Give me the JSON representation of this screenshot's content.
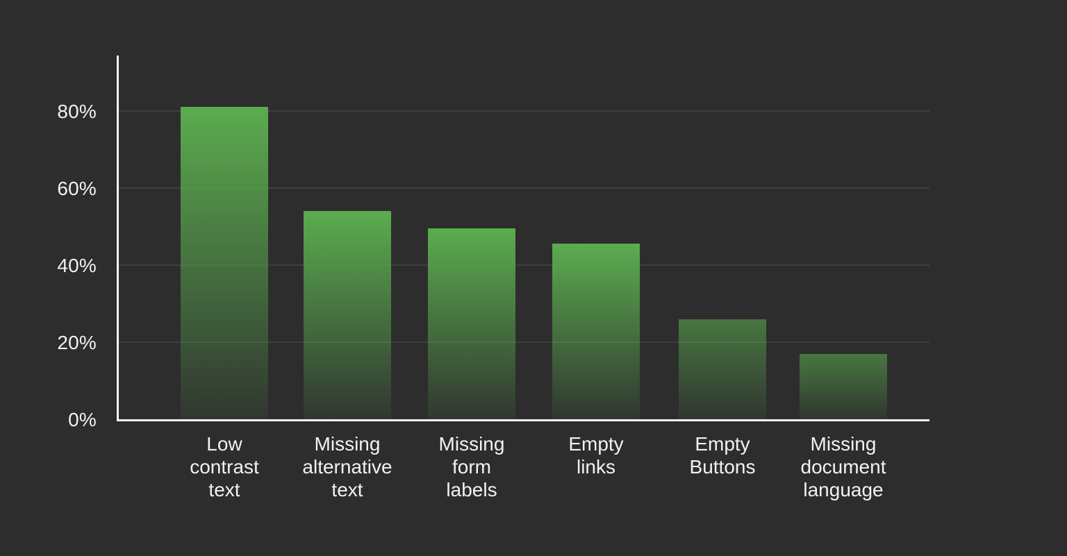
{
  "chart_data": {
    "type": "bar",
    "title": "",
    "subtitle": "",
    "xlabel": "",
    "ylabel": "",
    "categories": [
      "Low contrast text",
      "Missing alternative text",
      "Missing form labels",
      "Empty links",
      "Empty Buttons",
      "Missing document language"
    ],
    "values": [
      81,
      54,
      49.5,
      45.5,
      26,
      17
    ],
    "value_unit": "%",
    "ylim": [
      0,
      94
    ],
    "yticks": [
      {
        "value": 0,
        "label": "0%"
      },
      {
        "value": 20,
        "label": "20%"
      },
      {
        "value": 40,
        "label": "40%"
      },
      {
        "value": 60,
        "label": "60%"
      },
      {
        "value": 80,
        "label": "80%"
      }
    ],
    "grid": "horizontal gridlines every 20%",
    "legend": "none",
    "bar_top_opacity": [
      1,
      1,
      1,
      1,
      0.58,
      0.58
    ]
  },
  "colors": {
    "background": "#2D2D2D",
    "axis_line": "#F7F7F7",
    "gridline": "#3F3F3F",
    "bar_green": "#5BAC4F",
    "label_text": "#F2F2F2"
  }
}
